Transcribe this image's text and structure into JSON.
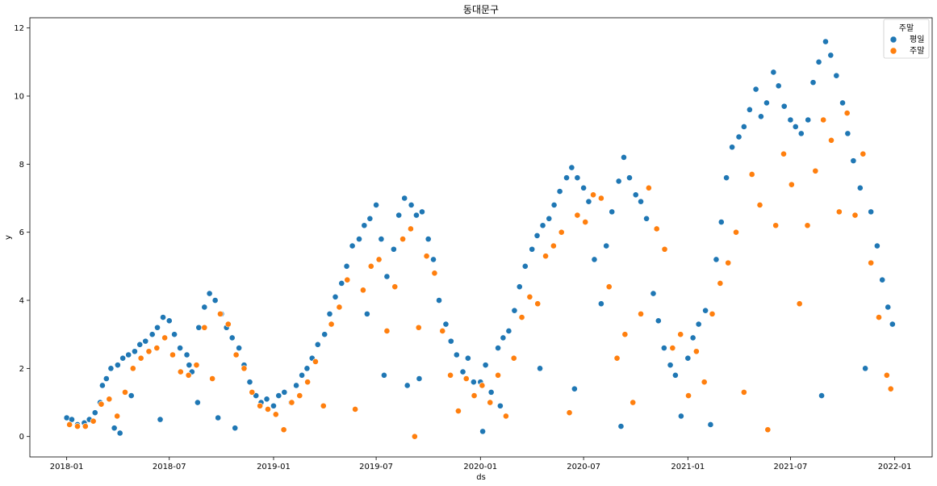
{
  "chart_data": {
    "type": "scatter",
    "title": "동대문구",
    "xlabel": "ds",
    "ylabel": "y",
    "xlim": [
      "2017-10-28",
      "2022-03-08"
    ],
    "ylim": [
      -0.6,
      12.3
    ],
    "x_ticks": [
      "2018-01",
      "2018-07",
      "2019-01",
      "2019-07",
      "2020-01",
      "2020-07",
      "2021-01",
      "2021-07",
      "2022-01"
    ],
    "y_ticks": [
      0,
      2,
      4,
      6,
      8,
      10,
      12
    ],
    "grid": false,
    "legend": {
      "title": "주말",
      "placement": "top-right",
      "entries": [
        {
          "label": "평일",
          "color": "#1f77b4"
        },
        {
          "label": "주말",
          "color": "#ff7f0e"
        }
      ]
    },
    "series": [
      {
        "name": "평일",
        "color": "#1f77b4",
        "points": [
          [
            "2018-01-01",
            0.55
          ],
          [
            "2018-01-10",
            0.5
          ],
          [
            "2018-01-20",
            0.35
          ],
          [
            "2018-02-01",
            0.4
          ],
          [
            "2018-02-10",
            0.5
          ],
          [
            "2018-02-20",
            0.7
          ],
          [
            "2018-03-01",
            1.0
          ],
          [
            "2018-03-05",
            1.5
          ],
          [
            "2018-03-12",
            1.7
          ],
          [
            "2018-03-20",
            2.0
          ],
          [
            "2018-03-26",
            0.25
          ],
          [
            "2018-04-01",
            2.1
          ],
          [
            "2018-04-05",
            0.1
          ],
          [
            "2018-04-10",
            2.3
          ],
          [
            "2018-04-20",
            2.4
          ],
          [
            "2018-04-25",
            1.2
          ],
          [
            "2018-05-01",
            2.5
          ],
          [
            "2018-05-10",
            2.7
          ],
          [
            "2018-05-20",
            2.8
          ],
          [
            "2018-06-01",
            3.0
          ],
          [
            "2018-06-10",
            3.2
          ],
          [
            "2018-06-15",
            0.5
          ],
          [
            "2018-06-20",
            3.5
          ],
          [
            "2018-07-01",
            3.4
          ],
          [
            "2018-07-10",
            3.0
          ],
          [
            "2018-07-20",
            2.6
          ],
          [
            "2018-08-01",
            2.4
          ],
          [
            "2018-08-05",
            2.1
          ],
          [
            "2018-08-10",
            1.9
          ],
          [
            "2018-08-20",
            1.0
          ],
          [
            "2018-08-22",
            3.2
          ],
          [
            "2018-09-01",
            3.8
          ],
          [
            "2018-09-10",
            4.2
          ],
          [
            "2018-09-20",
            4.0
          ],
          [
            "2018-09-25",
            0.55
          ],
          [
            "2018-10-01",
            3.6
          ],
          [
            "2018-10-10",
            3.2
          ],
          [
            "2018-10-20",
            2.9
          ],
          [
            "2018-10-25",
            0.25
          ],
          [
            "2018-11-01",
            2.6
          ],
          [
            "2018-11-10",
            2.1
          ],
          [
            "2018-11-20",
            1.6
          ],
          [
            "2018-12-01",
            1.2
          ],
          [
            "2018-12-10",
            1.0
          ],
          [
            "2018-12-20",
            1.1
          ],
          [
            "2019-01-01",
            0.9
          ],
          [
            "2019-01-10",
            1.2
          ],
          [
            "2019-01-20",
            1.3
          ],
          [
            "2019-02-01",
            1.0
          ],
          [
            "2019-02-10",
            1.5
          ],
          [
            "2019-02-20",
            1.8
          ],
          [
            "2019-03-01",
            2.0
          ],
          [
            "2019-03-10",
            2.3
          ],
          [
            "2019-03-20",
            2.7
          ],
          [
            "2019-04-01",
            3.0
          ],
          [
            "2019-04-10",
            3.6
          ],
          [
            "2019-04-20",
            4.1
          ],
          [
            "2019-05-01",
            4.5
          ],
          [
            "2019-05-10",
            5.0
          ],
          [
            "2019-05-20",
            5.6
          ],
          [
            "2019-06-01",
            5.8
          ],
          [
            "2019-06-10",
            6.2
          ],
          [
            "2019-06-15",
            3.6
          ],
          [
            "2019-06-20",
            6.4
          ],
          [
            "2019-07-01",
            6.8
          ],
          [
            "2019-07-10",
            5.8
          ],
          [
            "2019-07-15",
            1.8
          ],
          [
            "2019-07-20",
            4.7
          ],
          [
            "2019-08-01",
            5.5
          ],
          [
            "2019-08-10",
            6.5
          ],
          [
            "2019-08-20",
            7.0
          ],
          [
            "2019-08-25",
            1.5
          ],
          [
            "2019-09-01",
            6.8
          ],
          [
            "2019-09-10",
            6.5
          ],
          [
            "2019-09-15",
            1.7
          ],
          [
            "2019-09-20",
            6.6
          ],
          [
            "2019-10-01",
            5.8
          ],
          [
            "2019-10-10",
            5.2
          ],
          [
            "2019-10-20",
            4.0
          ],
          [
            "2019-11-01",
            3.3
          ],
          [
            "2019-11-10",
            2.8
          ],
          [
            "2019-11-20",
            2.4
          ],
          [
            "2019-12-01",
            1.9
          ],
          [
            "2019-12-10",
            2.3
          ],
          [
            "2019-12-20",
            1.6
          ],
          [
            "2020-01-01",
            1.6
          ],
          [
            "2020-01-05",
            0.15
          ],
          [
            "2020-01-10",
            2.1
          ],
          [
            "2020-01-20",
            1.3
          ],
          [
            "2020-02-01",
            2.6
          ],
          [
            "2020-02-05",
            0.9
          ],
          [
            "2020-02-10",
            2.9
          ],
          [
            "2020-02-20",
            3.1
          ],
          [
            "2020-03-01",
            3.7
          ],
          [
            "2020-03-10",
            4.4
          ],
          [
            "2020-03-20",
            5.0
          ],
          [
            "2020-04-01",
            5.5
          ],
          [
            "2020-04-10",
            5.9
          ],
          [
            "2020-04-15",
            2.0
          ],
          [
            "2020-04-20",
            6.2
          ],
          [
            "2020-05-01",
            6.4
          ],
          [
            "2020-05-10",
            6.8
          ],
          [
            "2020-05-20",
            7.2
          ],
          [
            "2020-06-01",
            7.6
          ],
          [
            "2020-06-10",
            7.9
          ],
          [
            "2020-06-15",
            1.4
          ],
          [
            "2020-06-20",
            7.6
          ],
          [
            "2020-07-01",
            7.3
          ],
          [
            "2020-07-10",
            6.9
          ],
          [
            "2020-07-20",
            5.2
          ],
          [
            "2020-08-01",
            3.9
          ],
          [
            "2020-08-10",
            5.6
          ],
          [
            "2020-08-20",
            6.6
          ],
          [
            "2020-09-01",
            7.5
          ],
          [
            "2020-09-05",
            0.3
          ],
          [
            "2020-09-10",
            8.2
          ],
          [
            "2020-09-20",
            7.6
          ],
          [
            "2020-10-01",
            7.1
          ],
          [
            "2020-10-10",
            6.9
          ],
          [
            "2020-10-20",
            6.4
          ],
          [
            "2020-11-01",
            4.2
          ],
          [
            "2020-11-10",
            3.4
          ],
          [
            "2020-11-20",
            2.6
          ],
          [
            "2020-12-01",
            2.1
          ],
          [
            "2020-12-10",
            1.8
          ],
          [
            "2020-12-20",
            0.6
          ],
          [
            "2021-01-01",
            2.3
          ],
          [
            "2021-01-10",
            2.9
          ],
          [
            "2021-01-20",
            3.3
          ],
          [
            "2021-02-01",
            3.7
          ],
          [
            "2021-02-10",
            0.35
          ],
          [
            "2021-02-20",
            5.2
          ],
          [
            "2021-03-01",
            6.3
          ],
          [
            "2021-03-10",
            7.6
          ],
          [
            "2021-03-20",
            8.5
          ],
          [
            "2021-04-01",
            8.8
          ],
          [
            "2021-04-10",
            9.1
          ],
          [
            "2021-04-20",
            9.6
          ],
          [
            "2021-05-01",
            10.2
          ],
          [
            "2021-05-10",
            9.4
          ],
          [
            "2021-05-20",
            9.8
          ],
          [
            "2021-06-01",
            10.7
          ],
          [
            "2021-06-10",
            10.3
          ],
          [
            "2021-06-20",
            9.7
          ],
          [
            "2021-07-01",
            9.3
          ],
          [
            "2021-07-10",
            9.1
          ],
          [
            "2021-07-20",
            8.9
          ],
          [
            "2021-08-01",
            9.3
          ],
          [
            "2021-08-10",
            10.4
          ],
          [
            "2021-08-20",
            11.0
          ],
          [
            "2021-08-25",
            1.2
          ],
          [
            "2021-09-01",
            11.6
          ],
          [
            "2021-09-10",
            11.2
          ],
          [
            "2021-09-20",
            10.6
          ],
          [
            "2021-10-01",
            9.8
          ],
          [
            "2021-10-10",
            8.9
          ],
          [
            "2021-10-20",
            8.1
          ],
          [
            "2021-11-01",
            7.3
          ],
          [
            "2021-11-10",
            2.0
          ],
          [
            "2021-11-20",
            6.6
          ],
          [
            "2021-12-01",
            5.6
          ],
          [
            "2021-12-10",
            4.6
          ],
          [
            "2021-12-20",
            3.8
          ],
          [
            "2021-12-28",
            3.3
          ]
        ]
      },
      {
        "name": "주말",
        "color": "#ff7f0e",
        "points": [
          [
            "2018-01-06",
            0.35
          ],
          [
            "2018-01-20",
            0.3
          ],
          [
            "2018-02-03",
            0.3
          ],
          [
            "2018-02-17",
            0.45
          ],
          [
            "2018-03-03",
            0.95
          ],
          [
            "2018-03-17",
            1.1
          ],
          [
            "2018-03-31",
            0.6
          ],
          [
            "2018-04-14",
            1.3
          ],
          [
            "2018-04-28",
            2.0
          ],
          [
            "2018-05-12",
            2.3
          ],
          [
            "2018-05-26",
            2.5
          ],
          [
            "2018-06-09",
            2.6
          ],
          [
            "2018-06-23",
            2.9
          ],
          [
            "2018-07-07",
            2.4
          ],
          [
            "2018-07-21",
            1.9
          ],
          [
            "2018-08-04",
            1.8
          ],
          [
            "2018-08-18",
            2.1
          ],
          [
            "2018-09-01",
            3.2
          ],
          [
            "2018-09-15",
            1.7
          ],
          [
            "2018-09-29",
            3.6
          ],
          [
            "2018-10-13",
            3.3
          ],
          [
            "2018-10-27",
            2.4
          ],
          [
            "2018-11-10",
            2.0
          ],
          [
            "2018-11-24",
            1.3
          ],
          [
            "2018-12-08",
            0.9
          ],
          [
            "2018-12-22",
            0.8
          ],
          [
            "2019-01-05",
            0.65
          ],
          [
            "2019-01-19",
            0.2
          ],
          [
            "2019-02-02",
            1.0
          ],
          [
            "2019-02-16",
            1.2
          ],
          [
            "2019-03-02",
            1.6
          ],
          [
            "2019-03-16",
            2.2
          ],
          [
            "2019-03-30",
            0.9
          ],
          [
            "2019-04-13",
            3.3
          ],
          [
            "2019-04-27",
            3.8
          ],
          [
            "2019-05-11",
            4.6
          ],
          [
            "2019-05-25",
            0.8
          ],
          [
            "2019-06-08",
            4.3
          ],
          [
            "2019-06-22",
            5.0
          ],
          [
            "2019-07-06",
            5.2
          ],
          [
            "2019-07-20",
            3.1
          ],
          [
            "2019-08-03",
            4.4
          ],
          [
            "2019-08-17",
            5.8
          ],
          [
            "2019-08-31",
            6.1
          ],
          [
            "2019-09-07",
            0.0
          ],
          [
            "2019-09-14",
            3.2
          ],
          [
            "2019-09-28",
            5.3
          ],
          [
            "2019-10-12",
            4.8
          ],
          [
            "2019-10-26",
            3.1
          ],
          [
            "2019-11-09",
            1.8
          ],
          [
            "2019-11-23",
            0.75
          ],
          [
            "2019-12-07",
            1.7
          ],
          [
            "2019-12-21",
            1.2
          ],
          [
            "2020-01-04",
            1.5
          ],
          [
            "2020-01-18",
            1.0
          ],
          [
            "2020-02-01",
            1.8
          ],
          [
            "2020-02-15",
            0.6
          ],
          [
            "2020-02-29",
            2.3
          ],
          [
            "2020-03-14",
            3.5
          ],
          [
            "2020-03-28",
            4.1
          ],
          [
            "2020-04-11",
            3.9
          ],
          [
            "2020-04-25",
            5.3
          ],
          [
            "2020-05-09",
            5.6
          ],
          [
            "2020-05-23",
            6.0
          ],
          [
            "2020-06-06",
            0.7
          ],
          [
            "2020-06-20",
            6.5
          ],
          [
            "2020-07-04",
            6.3
          ],
          [
            "2020-07-18",
            7.1
          ],
          [
            "2020-08-01",
            7.0
          ],
          [
            "2020-08-15",
            4.4
          ],
          [
            "2020-08-29",
            2.3
          ],
          [
            "2020-09-12",
            3.0
          ],
          [
            "2020-09-26",
            1.0
          ],
          [
            "2020-10-10",
            3.6
          ],
          [
            "2020-10-24",
            7.3
          ],
          [
            "2020-11-07",
            6.1
          ],
          [
            "2020-11-21",
            5.5
          ],
          [
            "2020-12-05",
            2.6
          ],
          [
            "2020-12-19",
            3.0
          ],
          [
            "2021-01-02",
            1.2
          ],
          [
            "2021-01-16",
            2.5
          ],
          [
            "2021-01-30",
            1.6
          ],
          [
            "2021-02-13",
            3.6
          ],
          [
            "2021-02-27",
            4.5
          ],
          [
            "2021-03-13",
            5.1
          ],
          [
            "2021-03-27",
            6.0
          ],
          [
            "2021-04-10",
            1.3
          ],
          [
            "2021-04-24",
            7.7
          ],
          [
            "2021-05-08",
            6.8
          ],
          [
            "2021-05-22",
            0.2
          ],
          [
            "2021-06-05",
            6.2
          ],
          [
            "2021-06-19",
            8.3
          ],
          [
            "2021-07-03",
            7.4
          ],
          [
            "2021-07-17",
            3.9
          ],
          [
            "2021-07-31",
            6.2
          ],
          [
            "2021-08-14",
            7.8
          ],
          [
            "2021-08-28",
            9.3
          ],
          [
            "2021-09-11",
            8.7
          ],
          [
            "2021-09-25",
            6.6
          ],
          [
            "2021-10-09",
            9.5
          ],
          [
            "2021-10-23",
            6.5
          ],
          [
            "2021-11-06",
            8.3
          ],
          [
            "2021-11-20",
            5.1
          ],
          [
            "2021-12-04",
            3.5
          ],
          [
            "2021-12-18",
            1.8
          ],
          [
            "2021-12-25",
            1.4
          ]
        ]
      }
    ]
  }
}
